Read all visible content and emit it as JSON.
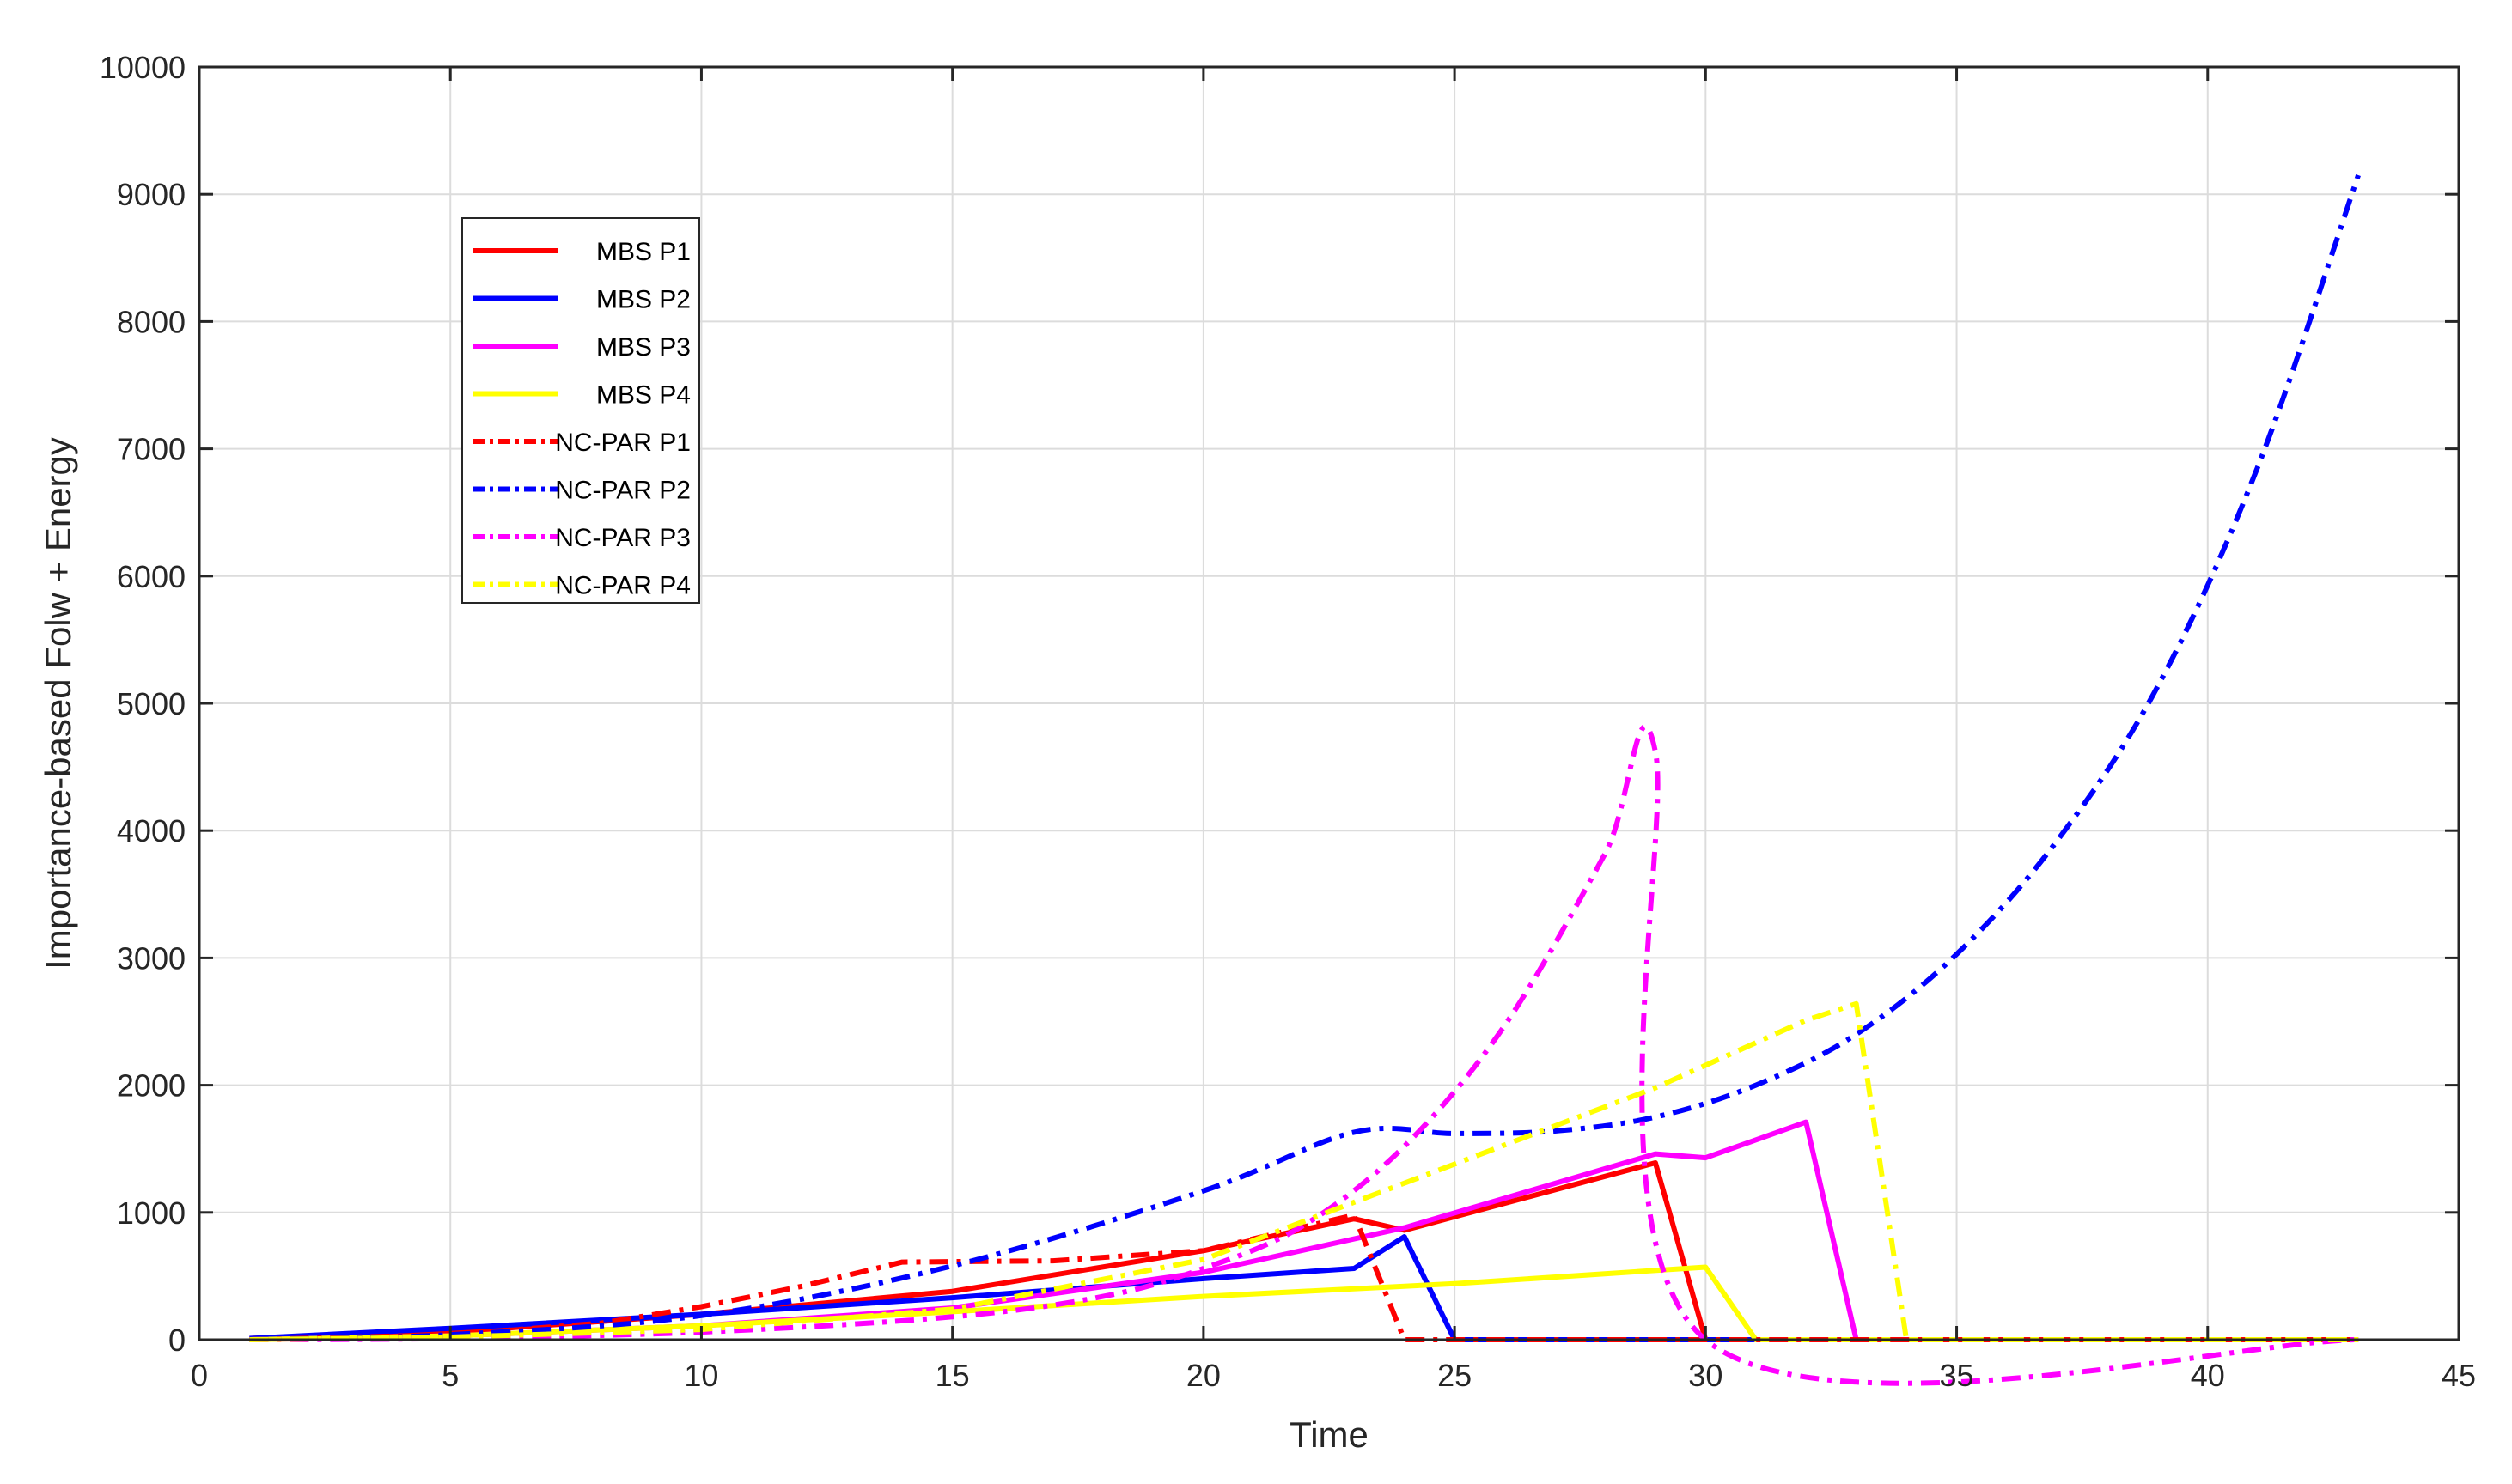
{
  "chart_data": {
    "type": "line",
    "xlabel": "Time",
    "ylabel": "Importance-based Folw + Energy",
    "xlim": [
      0,
      45
    ],
    "ylim": [
      0,
      10000
    ],
    "xticks": [
      "0",
      "5",
      "10",
      "15",
      "20",
      "25",
      "30",
      "35",
      "40",
      "45"
    ],
    "yticks": [
      "0",
      "1000",
      "2000",
      "3000",
      "4000",
      "5000",
      "6000",
      "7000",
      "8000",
      "9000",
      "10000"
    ],
    "grid": true,
    "legend_position": "upper-left",
    "series": [
      {
        "name": "MBS P1",
        "color": "#ff0000",
        "style": "solid",
        "x": [
          1,
          5,
          10,
          15,
          20,
          23,
          24,
          29,
          30,
          43
        ],
        "y": [
          10,
          60,
          200,
          380,
          700,
          950,
          860,
          1390,
          0,
          0
        ]
      },
      {
        "name": "MBS P2",
        "color": "#0000ff",
        "style": "solid",
        "x": [
          1,
          5,
          10,
          15,
          20,
          23,
          24,
          25,
          43
        ],
        "y": [
          10,
          90,
          200,
          330,
          480,
          560,
          810,
          0,
          0
        ]
      },
      {
        "name": "MBS P3",
        "color": "#ff00ff",
        "style": "solid",
        "x": [
          1,
          5,
          10,
          15,
          20,
          24,
          29,
          30,
          32,
          33,
          43
        ],
        "y": [
          0,
          30,
          110,
          250,
          530,
          880,
          1460,
          1430,
          1710,
          0,
          0
        ]
      },
      {
        "name": "MBS P4",
        "color": "#ffff00",
        "style": "solid",
        "x": [
          1,
          5,
          10,
          15,
          20,
          25,
          30,
          31,
          43
        ],
        "y": [
          0,
          30,
          110,
          220,
          340,
          440,
          570,
          0,
          0
        ]
      },
      {
        "name": "NC-PAR P1",
        "color": "#ff0000",
        "style": "dashdot",
        "x": [
          1,
          5,
          8,
          10,
          12,
          14,
          17,
          20,
          23,
          24,
          43
        ],
        "y": [
          0,
          40,
          130,
          260,
          420,
          610,
          620,
          700,
          980,
          0,
          0
        ]
      },
      {
        "name": "NC-PAR P2",
        "color": "#0000ff",
        "style": "dashdot",
        "x": [
          1,
          5,
          10,
          15,
          20,
          23,
          25,
          27,
          29,
          31,
          33,
          35,
          37,
          39,
          41,
          43
        ],
        "y": [
          0,
          40,
          190,
          580,
          1170,
          1630,
          1620,
          1640,
          1750,
          2000,
          2400,
          3030,
          3920,
          5130,
          6860,
          9150
        ],
        "smooth": true
      },
      {
        "name": "NC-PAR P3",
        "color": "#ff00ff",
        "style": "dashdot",
        "x": [
          1,
          5,
          10,
          15,
          18,
          20,
          22,
          24,
          26,
          28,
          29,
          30,
          43
        ],
        "y": [
          0,
          10,
          60,
          180,
          340,
          560,
          900,
          1520,
          2470,
          3820,
          4620,
          0,
          0
        ],
        "smooth": true
      },
      {
        "name": "NC-PAR P4",
        "color": "#ffff00",
        "style": "dashdot",
        "x": [
          1,
          5,
          10,
          15,
          20,
          23,
          25,
          27,
          29,
          32,
          33,
          34,
          43
        ],
        "y": [
          0,
          20,
          80,
          240,
          630,
          1080,
          1380,
          1680,
          1980,
          2510,
          2640,
          0,
          0
        ]
      }
    ]
  }
}
